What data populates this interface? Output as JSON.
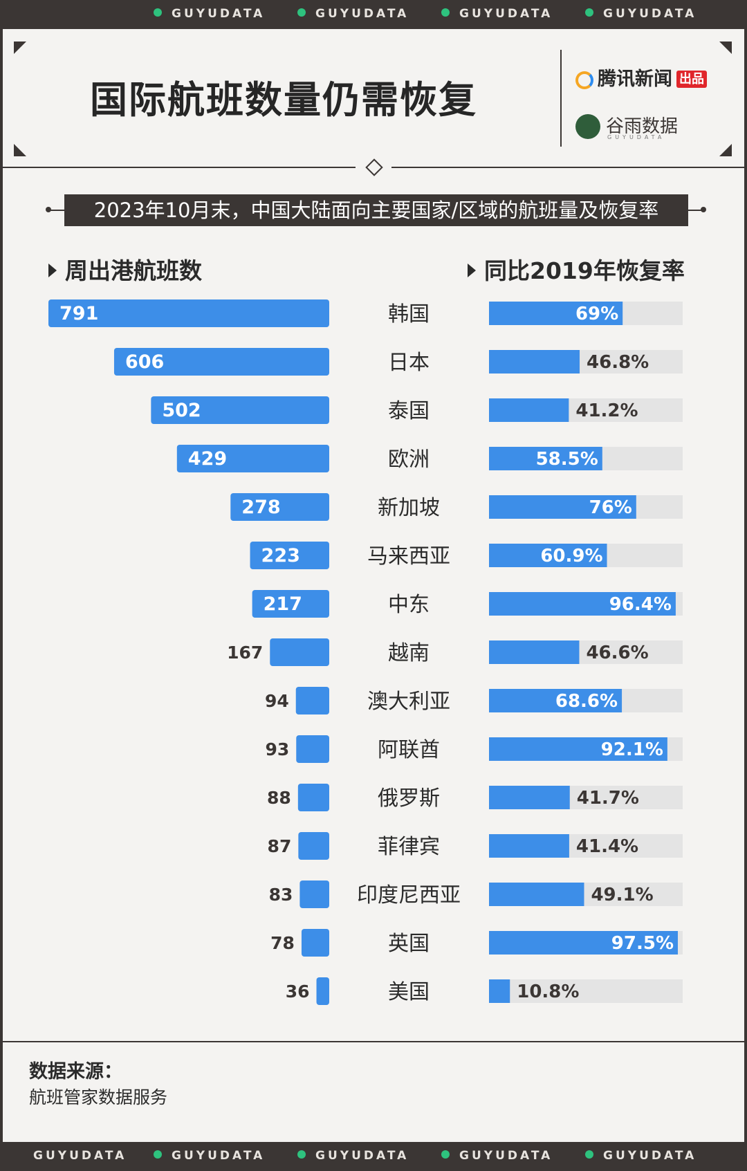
{
  "strip": {
    "brand": "GUYUDATA"
  },
  "header": {
    "title": "国际航班数量仍需恢复",
    "publisher": "腾讯新闻",
    "publisher_tag": "出品",
    "partner": "谷雨数据",
    "partner_sub": "GUYUDATA"
  },
  "subtitle": "2023年10月末，中国大陆面向主要国家/区域的航班量及恢复率",
  "columns": {
    "left": "周出港航班数",
    "right": "同比2019年恢复率"
  },
  "chart_data": {
    "type": "bar",
    "title": "2023年10月末，中国大陆面向主要国家/区域的航班量及恢复率",
    "categories": [
      "韩国",
      "日本",
      "泰国",
      "欧洲",
      "新加坡",
      "马来西亚",
      "中东",
      "越南",
      "澳大利亚",
      "阿联酋",
      "俄罗斯",
      "菲律宾",
      "印度尼西亚",
      "英国",
      "美国"
    ],
    "series": [
      {
        "name": "周出港航班数",
        "values": [
          791,
          606,
          502,
          429,
          278,
          223,
          217,
          167,
          94,
          93,
          88,
          87,
          83,
          78,
          36
        ],
        "labels": [
          "791",
          "606",
          "502",
          "429",
          "278",
          "223",
          "217",
          "167",
          "94",
          "93",
          "88",
          "87",
          "83",
          "78",
          "36"
        ]
      },
      {
        "name": "同比2019年恢复率",
        "values": [
          69,
          46.8,
          41.2,
          58.5,
          76,
          60.9,
          96.4,
          46.6,
          68.6,
          92.1,
          41.7,
          41.4,
          49.1,
          97.5,
          10.8
        ],
        "labels": [
          "69%",
          "46.8%",
          "41.2%",
          "58.5%",
          "76%",
          "60.9%",
          "96.4%",
          "46.6%",
          "68.6%",
          "92.1%",
          "41.7%",
          "41.4%",
          "49.1%",
          "97.5%",
          "10.8%"
        ]
      }
    ],
    "xlim_left": [
      0,
      791
    ],
    "xlim_right": [
      0,
      100
    ],
    "colors": {
      "bar": "#3d8ee8",
      "track": "#e4e4e4"
    }
  },
  "source": {
    "label": "数据来源：",
    "value": "航班管家数据服务"
  }
}
